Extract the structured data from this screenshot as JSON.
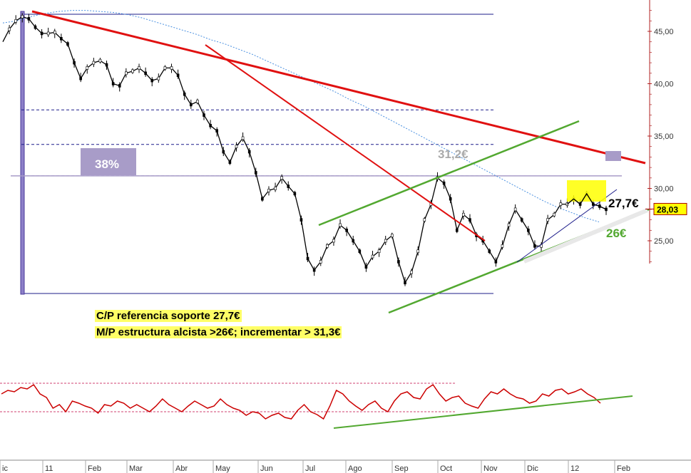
{
  "chart_data": [
    {
      "type": "line",
      "title": "",
      "xlabel": "",
      "ylabel": "",
      "x_tick_labels": [
        "ic",
        "11",
        "Feb",
        "Mar",
        "Abr",
        "May",
        "Jun",
        "Jul",
        "Ago",
        "Sep",
        "Oct",
        "Nov",
        "Dic",
        "12",
        "Feb"
      ],
      "y_tick_labels": [
        "45,00",
        "40,00",
        "35,00",
        "30,00",
        "25,00"
      ],
      "y_ticks": [
        45,
        40,
        35,
        30,
        25
      ],
      "ylim": [
        21.8,
        47.8
      ],
      "last_price_label": "28,03",
      "last_price": 28.03,
      "series": [
        {
          "values": [
            44.0,
            45.2,
            46.0,
            46.4,
            46.2,
            45.4,
            44.8,
            44.8,
            44.9,
            44.3,
            43.8,
            42.0,
            40.5,
            41.5,
            42.0,
            42.2,
            41.8,
            40.0,
            39.8,
            41.0,
            41.2,
            41.5,
            41.0,
            40.3,
            40.5,
            41.5,
            41.5,
            40.8,
            39.0,
            38.0,
            38.3,
            37.0,
            36.0,
            35.5,
            33.5,
            32.5,
            34.0,
            34.8,
            33.5,
            31.5,
            29.0,
            29.8,
            30.0,
            31.0,
            30.2,
            29.5,
            27.0,
            23.3,
            22.2,
            23.0,
            24.5,
            25.0,
            26.5,
            26.0,
            25.0,
            24.0,
            22.5,
            23.5,
            24.0,
            25.0,
            25.5,
            23.0,
            21.0,
            22.0,
            24.0,
            27.0,
            28.5,
            31.0,
            30.5,
            29.0,
            26.0,
            27.5,
            27.0,
            25.5,
            25.0,
            24.0,
            23.0,
            24.5,
            26.5,
            28.0,
            27.0,
            26.0,
            24.5,
            24.5,
            27.0,
            27.5,
            28.5,
            28.5,
            29.0,
            28.5,
            29.5,
            28.5,
            28.3,
            28.0
          ]
        }
      ],
      "moving_average": [
        45.8,
        46.0,
        46.4,
        46.7,
        46.9,
        47.0,
        47.0,
        46.9,
        46.8,
        46.6,
        46.3,
        45.9,
        45.5,
        45.1,
        44.7,
        44.2,
        43.8,
        43.3,
        42.8,
        42.2,
        41.6,
        41.0,
        40.4,
        39.8,
        39.2,
        38.5,
        37.9,
        37.2,
        36.5,
        35.8,
        35.1,
        34.4,
        33.7,
        33.0,
        32.3,
        31.6,
        30.9,
        30.2,
        29.5,
        28.8,
        28.2,
        27.7,
        27.2,
        26.8
      ],
      "annotations": {
        "pct_label": "38%",
        "resistance_label": "31,2€",
        "support_label": "27,7€",
        "support2_label": "26€"
      },
      "resistance_levels": [
        31.2
      ],
      "fib_levels": [
        46.8,
        37.5,
        34.2,
        31.2
      ],
      "grid": false
    },
    {
      "type": "line",
      "title": "",
      "bands": [
        70,
        30
      ],
      "ylim": [
        0,
        100
      ],
      "series": [
        {
          "values": [
            55,
            60,
            58,
            64,
            62,
            68,
            55,
            50,
            35,
            40,
            30,
            45,
            42,
            38,
            35,
            28,
            40,
            38,
            45,
            42,
            35,
            40,
            35,
            30,
            38,
            48,
            40,
            35,
            30,
            38,
            45,
            40,
            35,
            38,
            48,
            40,
            35,
            32,
            25,
            30,
            28,
            20,
            25,
            28,
            22,
            20,
            32,
            40,
            30,
            26,
            20,
            38,
            60,
            55,
            45,
            38,
            32,
            40,
            45,
            35,
            30,
            45,
            55,
            58,
            50,
            48,
            62,
            68,
            55,
            45,
            50,
            52,
            42,
            38,
            35,
            48,
            58,
            55,
            62,
            55,
            50,
            48,
            42,
            45,
            55,
            52,
            60,
            62,
            55,
            58,
            62,
            55,
            50,
            42
          ]
        }
      ]
    }
  ],
  "notes": {
    "line1": "C/P referencia soporte 27,7€",
    "line2": "M/P estructura alcista >26€; incrementar > 31,3€"
  }
}
